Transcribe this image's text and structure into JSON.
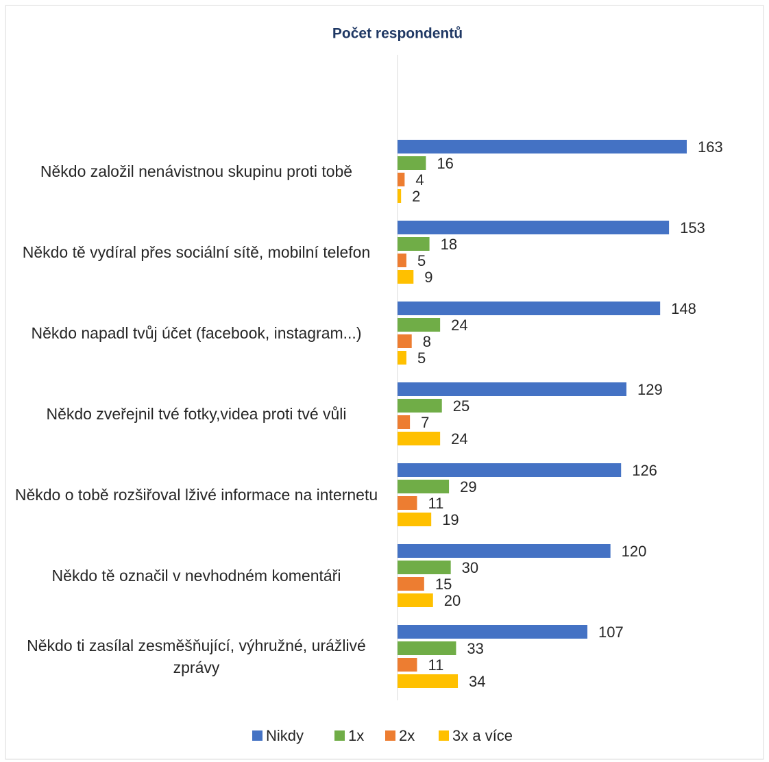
{
  "chart_data": {
    "type": "bar",
    "orientation": "horizontal",
    "title": "Počet respondentů",
    "categories": [
      "Někdo založil nenávistnou skupinu proti tobě",
      "Někdo tě vydíral přes sociální sítě, mobilní telefon",
      "Někdo napadl tvůj účet (facebook, instagram...)",
      "Někdo zveřejnil tvé fotky,videa proti tvé vůli",
      "Někdo o tobě rozšiřoval lživé informace na internetu",
      "Někdo tě označil v nevhodném komentáři",
      "Někdo ti zasílal zesměšňující, výhružné, urážlivé zprávy"
    ],
    "series": [
      {
        "name": "Nikdy",
        "color": "#4472c4",
        "values": [
          163,
          153,
          148,
          129,
          126,
          120,
          107
        ]
      },
      {
        "name": "1x",
        "color": "#70ad47",
        "values": [
          16,
          18,
          24,
          25,
          29,
          30,
          33
        ]
      },
      {
        "name": "2x",
        "color": "#ed7d31",
        "values": [
          4,
          5,
          8,
          7,
          11,
          15,
          11
        ]
      },
      {
        "name": "3x a více",
        "color": "#ffc000",
        "values": [
          2,
          9,
          5,
          24,
          19,
          20,
          34
        ]
      }
    ],
    "xlim": [
      0,
      180
    ],
    "legend": "bottom"
  }
}
